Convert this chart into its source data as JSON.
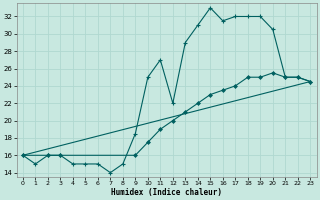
{
  "xlabel": "Humidex (Indice chaleur)",
  "bg_color": "#c8e8e0",
  "grid_color": "#b0d8d0",
  "line_color": "#006060",
  "xlim": [
    -0.5,
    23.5
  ],
  "ylim": [
    13.5,
    33.5
  ],
  "yticks": [
    14,
    16,
    18,
    20,
    22,
    24,
    26,
    28,
    30,
    32
  ],
  "xticks": [
    0,
    1,
    2,
    3,
    4,
    5,
    6,
    7,
    8,
    9,
    10,
    11,
    12,
    13,
    14,
    15,
    16,
    17,
    18,
    19,
    20,
    21,
    22,
    23
  ],
  "series1_x": [
    0,
    1,
    2,
    3,
    4,
    5,
    6,
    7,
    8,
    9,
    10,
    11,
    12,
    13,
    14,
    15,
    16,
    17,
    18,
    19,
    20,
    21,
    22,
    23
  ],
  "series1_y": [
    16,
    15,
    16,
    16,
    15,
    15,
    15,
    14,
    15,
    18.5,
    25,
    27,
    22,
    29,
    31,
    33,
    31.5,
    32,
    32,
    32,
    30.5,
    25,
    25,
    24.5
  ],
  "series2_x": [
    0,
    2,
    3,
    9,
    10,
    11,
    12,
    13,
    14,
    15,
    16,
    17,
    18,
    19,
    20,
    21,
    22,
    23
  ],
  "series2_y": [
    16,
    16,
    16,
    16,
    17.5,
    19,
    20,
    21,
    22,
    23,
    23.5,
    24,
    25,
    25,
    25.5,
    25,
    25,
    24.5
  ],
  "series3_x": [
    0,
    23
  ],
  "series3_y": [
    16,
    24.5
  ]
}
